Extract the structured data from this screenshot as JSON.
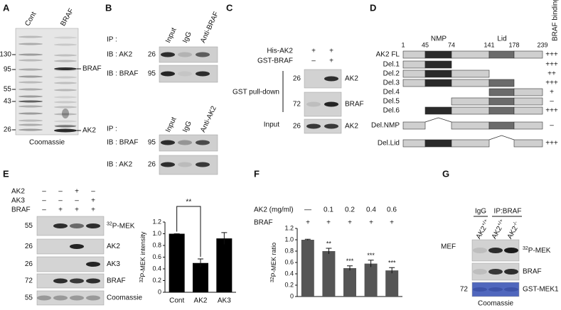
{
  "panels": {
    "a": {
      "label": "A",
      "lanes": [
        "Cont",
        "BRAF"
      ],
      "markers": [
        "130",
        "95",
        "55",
        "43",
        "26"
      ],
      "bands": [
        "BRAF",
        "AK2"
      ],
      "stain": "Coomassie"
    },
    "b": {
      "label": "B",
      "top": {
        "ip": "IP :",
        "lanes": [
          "Input",
          "IgG",
          "Anti-BRAF"
        ],
        "rows": [
          {
            "ib": "IB : AK2",
            "marker": "26"
          },
          {
            "ib": "IB : BRAF",
            "marker": "95"
          }
        ]
      },
      "bottom": {
        "ip": "IP :",
        "lanes": [
          "Input",
          "IgG",
          "Anti-AK2"
        ],
        "rows": [
          {
            "ib": "IB : BRAF",
            "marker": "95"
          },
          {
            "ib": "IB : AK2",
            "marker": "26"
          }
        ]
      }
    },
    "c": {
      "label": "C",
      "conditions": [
        {
          "name": "His-AK2",
          "signs": [
            "+",
            "+"
          ]
        },
        {
          "name": "GST-BRAF",
          "signs": [
            "–",
            "+"
          ]
        }
      ],
      "groups": [
        "GST pull-down",
        "Input"
      ],
      "rows": [
        {
          "marker": "26",
          "band": "AK2"
        },
        {
          "marker": "72",
          "band": "BRAF"
        },
        {
          "marker": "26",
          "band": "AK2"
        }
      ]
    },
    "d": {
      "label": "D",
      "domains": [
        "NMP",
        "Lid"
      ],
      "binding_header": "BRAF binding",
      "positions": [
        "1",
        "45",
        "74",
        "141",
        "178",
        "239"
      ],
      "constructs": [
        {
          "name": "AK2 FL",
          "binding": "+++"
        },
        {
          "name": "Del.1",
          "binding": "+++"
        },
        {
          "name": "Del.2",
          "binding": "++"
        },
        {
          "name": "Del.3",
          "binding": "+++"
        },
        {
          "name": "Del.4",
          "binding": "+"
        },
        {
          "name": "Del.5",
          "binding": "–"
        },
        {
          "name": "Del.6",
          "binding": "+++"
        },
        {
          "name": "Del.NMP",
          "binding": "–"
        },
        {
          "name": "Del.Lid",
          "binding": "+++"
        }
      ]
    },
    "e": {
      "label": "E",
      "conditions": [
        {
          "name": "AK2",
          "signs": [
            "–",
            "–",
            "+",
            "–"
          ]
        },
        {
          "name": "AK3",
          "signs": [
            "–",
            "–",
            "–",
            "+"
          ]
        },
        {
          "name": "BRAF",
          "signs": [
            "–",
            "+",
            "+",
            "+"
          ]
        }
      ],
      "rows": [
        {
          "marker": "55",
          "band_sup": "32",
          "band": "P-MEK"
        },
        {
          "marker": "26",
          "band": "AK2"
        },
        {
          "marker": "26",
          "band": "AK3"
        },
        {
          "marker": "72",
          "band": "BRAF"
        },
        {
          "marker": "55",
          "band": "Coomassie"
        }
      ]
    },
    "f": {
      "label": "F",
      "conditions": [
        {
          "name": "AK2 (mg/ml)",
          "signs": [
            "—",
            "0.1",
            "0.2",
            "0.4",
            "0.6"
          ]
        },
        {
          "name": "BRAF",
          "signs": [
            "+",
            "+",
            "+",
            "+",
            "+"
          ]
        }
      ]
    },
    "g": {
      "label": "G",
      "groups": [
        "IgG",
        "IP:BRAF"
      ],
      "cell": "MEF",
      "lanes": [
        {
          "name": "AK2",
          "sup": "+/+"
        },
        {
          "name": "AK2",
          "sup": "+/+"
        },
        {
          "name": "AK2",
          "sup": "-/-"
        }
      ],
      "rows": [
        {
          "band_sup": "32",
          "band": "P-MEK"
        },
        {
          "band": "BRAF"
        },
        {
          "marker": "72",
          "band": "GST-MEK1"
        }
      ],
      "stain": "Coomassie"
    }
  },
  "chart_data": [
    {
      "type": "bar",
      "y_label_sup": "32",
      "y_label": "P-MEK intensity",
      "categories": [
        "Cont",
        "AK2",
        "AK3"
      ],
      "values": [
        1.0,
        0.5,
        0.92
      ],
      "errors": [
        0,
        0.07,
        0.1
      ],
      "color": "#000000",
      "ylim": [
        0,
        1.2
      ],
      "yticks": [
        0,
        0.2,
        0.4,
        0.6,
        0.8,
        {
          "value": 1,
          "label": "1.0"
        },
        1.2
      ],
      "annotation": "**"
    },
    {
      "type": "bar",
      "y_label_sup": "32",
      "y_label": "P-MEK ratio",
      "categories": [
        null,
        null,
        null,
        null,
        null
      ],
      "values": [
        1.0,
        0.8,
        0.5,
        0.58,
        0.46
      ],
      "errors": [
        0.01,
        0.05,
        0.04,
        0.06,
        0.05
      ],
      "significance": [
        null,
        "**",
        "***",
        "***",
        "***"
      ],
      "color": "#555555",
      "ylim": [
        0,
        1.2
      ],
      "yticks": [
        0,
        0.2,
        0.4,
        0.6,
        0.8,
        {
          "value": 1,
          "label": "1.0"
        },
        1.2
      ]
    }
  ]
}
